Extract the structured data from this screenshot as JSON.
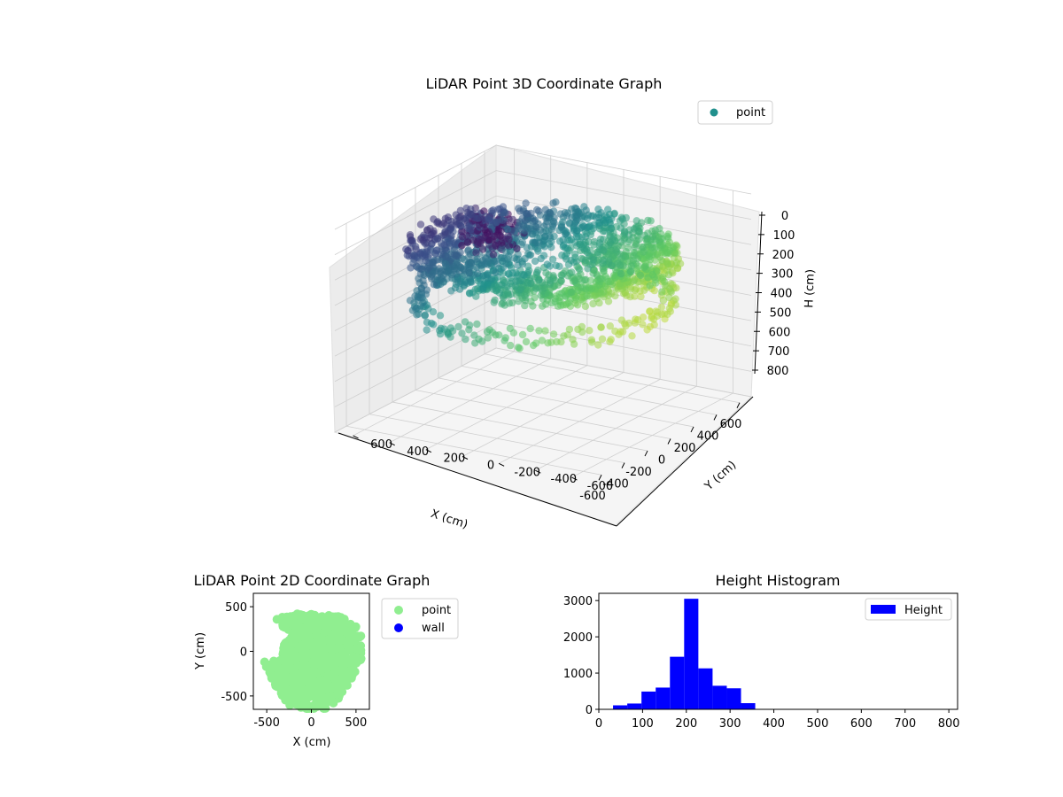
{
  "chart_data": [
    {
      "type": "scatter",
      "projection": "3d",
      "title": "LiDAR Point 3D Coordinate Graph",
      "xlabel": "X (cm)",
      "ylabel": "Y (cm)",
      "zlabel": "H (cm)",
      "xlim": [
        -700,
        700
      ],
      "ylim": [
        -700,
        700
      ],
      "zlim": [
        0,
        800
      ],
      "z_inverted": true,
      "x_ticks": [
        -600,
        -400,
        -200,
        0,
        200,
        400,
        600
      ],
      "y_ticks": [
        -600,
        -400,
        -200,
        0,
        200,
        400,
        600
      ],
      "z_ticks": [
        0,
        100,
        200,
        300,
        400,
        500,
        600,
        700,
        800
      ],
      "colormap": "viridis",
      "grid": true,
      "legend": {
        "position": "top-right",
        "entries": [
          {
            "label": "point",
            "color": "#21908d"
          }
        ]
      }
    },
    {
      "type": "scatter",
      "title": "LiDAR Point 2D Coordinate Graph",
      "xlabel": "X (cm)",
      "ylabel": "Y (cm)",
      "xlim": [
        -650,
        650
      ],
      "ylim": [
        -650,
        650
      ],
      "x_ticks": [
        -500,
        0,
        500
      ],
      "y_ticks": [
        -500,
        0,
        500
      ],
      "series": [
        {
          "name": "point",
          "color": "#90ee90"
        },
        {
          "name": "wall",
          "color": "#0000ff"
        }
      ],
      "legend": {
        "position": "outside-right"
      }
    },
    {
      "type": "bar",
      "title": "Height Histogram",
      "xlabel": "",
      "ylabel": "",
      "xlim": [
        0,
        820
      ],
      "ylim": [
        0,
        3200
      ],
      "x_ticks": [
        0,
        100,
        200,
        300,
        400,
        500,
        600,
        700,
        800
      ],
      "y_ticks": [
        0,
        1000,
        2000,
        3000
      ],
      "bin_width": 32.5,
      "bins": [
        {
          "x": 32.5,
          "value": 110
        },
        {
          "x": 65,
          "value": 160
        },
        {
          "x": 97.5,
          "value": 490
        },
        {
          "x": 130,
          "value": 600
        },
        {
          "x": 162.5,
          "value": 1450
        },
        {
          "x": 195,
          "value": 3050
        },
        {
          "x": 227.5,
          "value": 1130
        },
        {
          "x": 260,
          "value": 650
        },
        {
          "x": 292.5,
          "value": 580
        },
        {
          "x": 325,
          "value": 170
        }
      ],
      "series": [
        {
          "name": "Height",
          "color": "#0000ff"
        }
      ],
      "legend": {
        "position": "top-right"
      }
    }
  ]
}
